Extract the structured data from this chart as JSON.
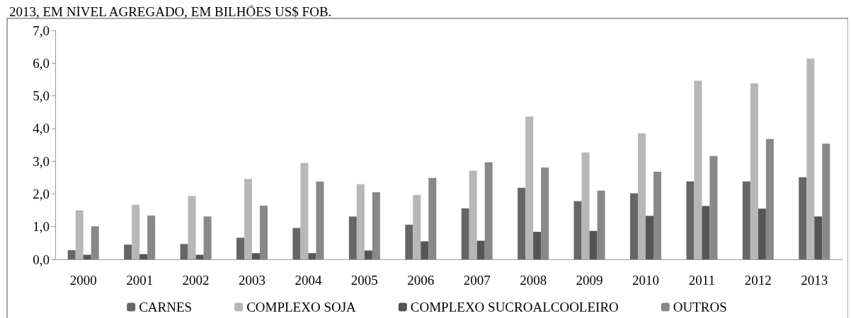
{
  "chart_data": {
    "type": "bar",
    "title": "2013, EM NÍVEL AGREGADO, EM BILHÕES US$ FOB.",
    "categories": [
      "2000",
      "2001",
      "2002",
      "2003",
      "2004",
      "2005",
      "2006",
      "2007",
      "2008",
      "2009",
      "2010",
      "2011",
      "2012",
      "2013"
    ],
    "series": [
      {
        "name": "CARNES",
        "color": "#666666",
        "values": [
          0.28,
          0.45,
          0.47,
          0.66,
          0.96,
          1.31,
          1.06,
          1.56,
          2.19,
          1.78,
          2.02,
          2.38,
          2.38,
          2.51
        ]
      },
      {
        "name": "COMPLEXO SOJA",
        "color": "#b7b7b7",
        "values": [
          1.5,
          1.67,
          1.94,
          2.46,
          2.95,
          2.3,
          1.97,
          2.71,
          4.37,
          3.27,
          3.85,
          5.46,
          5.38,
          6.14
        ]
      },
      {
        "name": "COMPLEXO SUCROALCOOLEIRO",
        "color": "#555555",
        "values": [
          0.14,
          0.16,
          0.14,
          0.19,
          0.19,
          0.27,
          0.55,
          0.57,
          0.84,
          0.87,
          1.33,
          1.63,
          1.55,
          1.31
        ]
      },
      {
        "name": "OUTROS",
        "color": "#888888",
        "values": [
          1.01,
          1.34,
          1.31,
          1.64,
          2.38,
          2.05,
          2.49,
          2.97,
          2.81,
          2.1,
          2.68,
          3.16,
          3.68,
          3.54
        ]
      }
    ],
    "ylim": [
      0,
      7
    ],
    "yticks": [
      {
        "value": 0,
        "label": "0,0"
      },
      {
        "value": 1,
        "label": "1,0"
      },
      {
        "value": 2,
        "label": "2,0"
      },
      {
        "value": 3,
        "label": "3,0"
      },
      {
        "value": 4,
        "label": "4,0"
      },
      {
        "value": 5,
        "label": "5,0"
      },
      {
        "value": 6,
        "label": "6,0"
      },
      {
        "value": 7,
        "label": "7,0"
      }
    ],
    "grid": false,
    "legend": "bottom"
  }
}
